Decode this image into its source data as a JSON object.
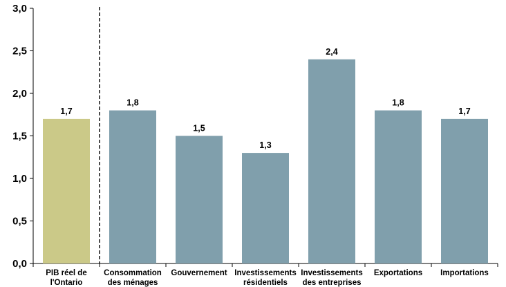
{
  "chart_data": {
    "type": "bar",
    "title": "",
    "xlabel": "",
    "ylabel": "",
    "ylim": [
      0,
      3.0
    ],
    "yticks": [
      "0,0",
      "0,5",
      "1,0",
      "1,5",
      "2,0",
      "2,5",
      "3,0"
    ],
    "grid": false,
    "legend": "none",
    "divider_after_index": 0,
    "categories": [
      [
        "PIB réel de",
        "l'Ontario"
      ],
      [
        "Consommation",
        "des ménages"
      ],
      [
        "Gouvernement"
      ],
      [
        "Investissements",
        "résidentiels"
      ],
      [
        "Investissements",
        "des entreprises"
      ],
      [
        "Exportations"
      ],
      [
        "Importations"
      ]
    ],
    "values": [
      1.7,
      1.8,
      1.5,
      1.3,
      2.4,
      1.8,
      1.7
    ],
    "value_labels": [
      "1,7",
      "1,8",
      "1,5",
      "1,3",
      "2,4",
      "1,8",
      "1,7"
    ],
    "colors": {
      "highlight": "#cbc988",
      "bars": "#809fac",
      "axis": "#000000"
    },
    "highlight_index": 0
  }
}
